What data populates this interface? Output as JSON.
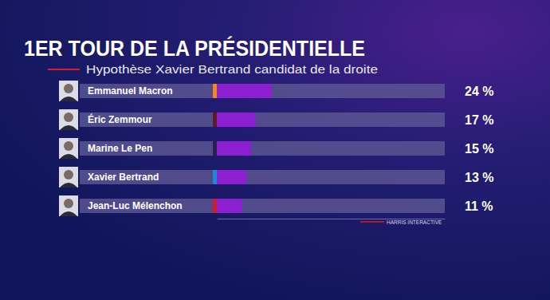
{
  "chart_data": {
    "type": "bar",
    "orientation": "horizontal",
    "title": "1ER TOUR DE LA PRÉSIDENTIELLE",
    "subtitle": "Hypothèse Xavier Bertrand candidat de la droite",
    "categories": [
      "Emmanuel Macron",
      "Éric Zemmour",
      "Marine Le Pen",
      "Xavier Bertrand",
      "Jean-Luc Mélenchon"
    ],
    "values": [
      24,
      17,
      15,
      13,
      11
    ],
    "value_labels": [
      "24 %",
      "17 %",
      "15 %",
      "13 %",
      "11 %"
    ],
    "color": "#8c1fd0",
    "xlim": [
      0,
      100
    ],
    "grid": false,
    "data_labels": true,
    "tick_labels": false,
    "source": "HARRIS INTERACTIVE"
  }
}
